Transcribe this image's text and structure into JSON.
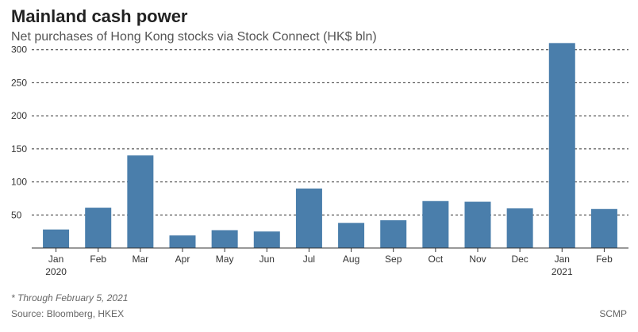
{
  "header": {
    "title": "Mainland cash power",
    "subtitle": "Net purchases of Hong Kong stocks via Stock Connect (HK$ bln)"
  },
  "footer": {
    "footnote": "* Through February 5, 2021",
    "source": "Source: Bloomberg, HKEX",
    "credit": "SCMP"
  },
  "chart_data": {
    "type": "bar",
    "categories": [
      "Jan",
      "Feb",
      "Mar",
      "Apr",
      "May",
      "Jun",
      "Jul",
      "Aug",
      "Sep",
      "Oct",
      "Nov",
      "Dec",
      "Jan",
      "Feb"
    ],
    "year_labels": [
      "2020",
      "",
      "",
      "",
      "",
      "",
      "",
      "",
      "",
      "",
      "",
      "",
      "2021",
      ""
    ],
    "values": [
      28,
      61,
      140,
      19,
      27,
      25,
      90,
      38,
      42,
      71,
      70,
      60,
      310,
      59
    ],
    "title": "Mainland cash power",
    "subtitle": "Net purchases of Hong Kong stocks via Stock Connect (HK$ bln)",
    "xlabel": "",
    "ylabel": "",
    "ylim": [
      0,
      320
    ],
    "yticks": [
      50,
      100,
      150,
      200,
      250,
      300
    ],
    "grid": true,
    "bar_color": "#4a7eab"
  }
}
